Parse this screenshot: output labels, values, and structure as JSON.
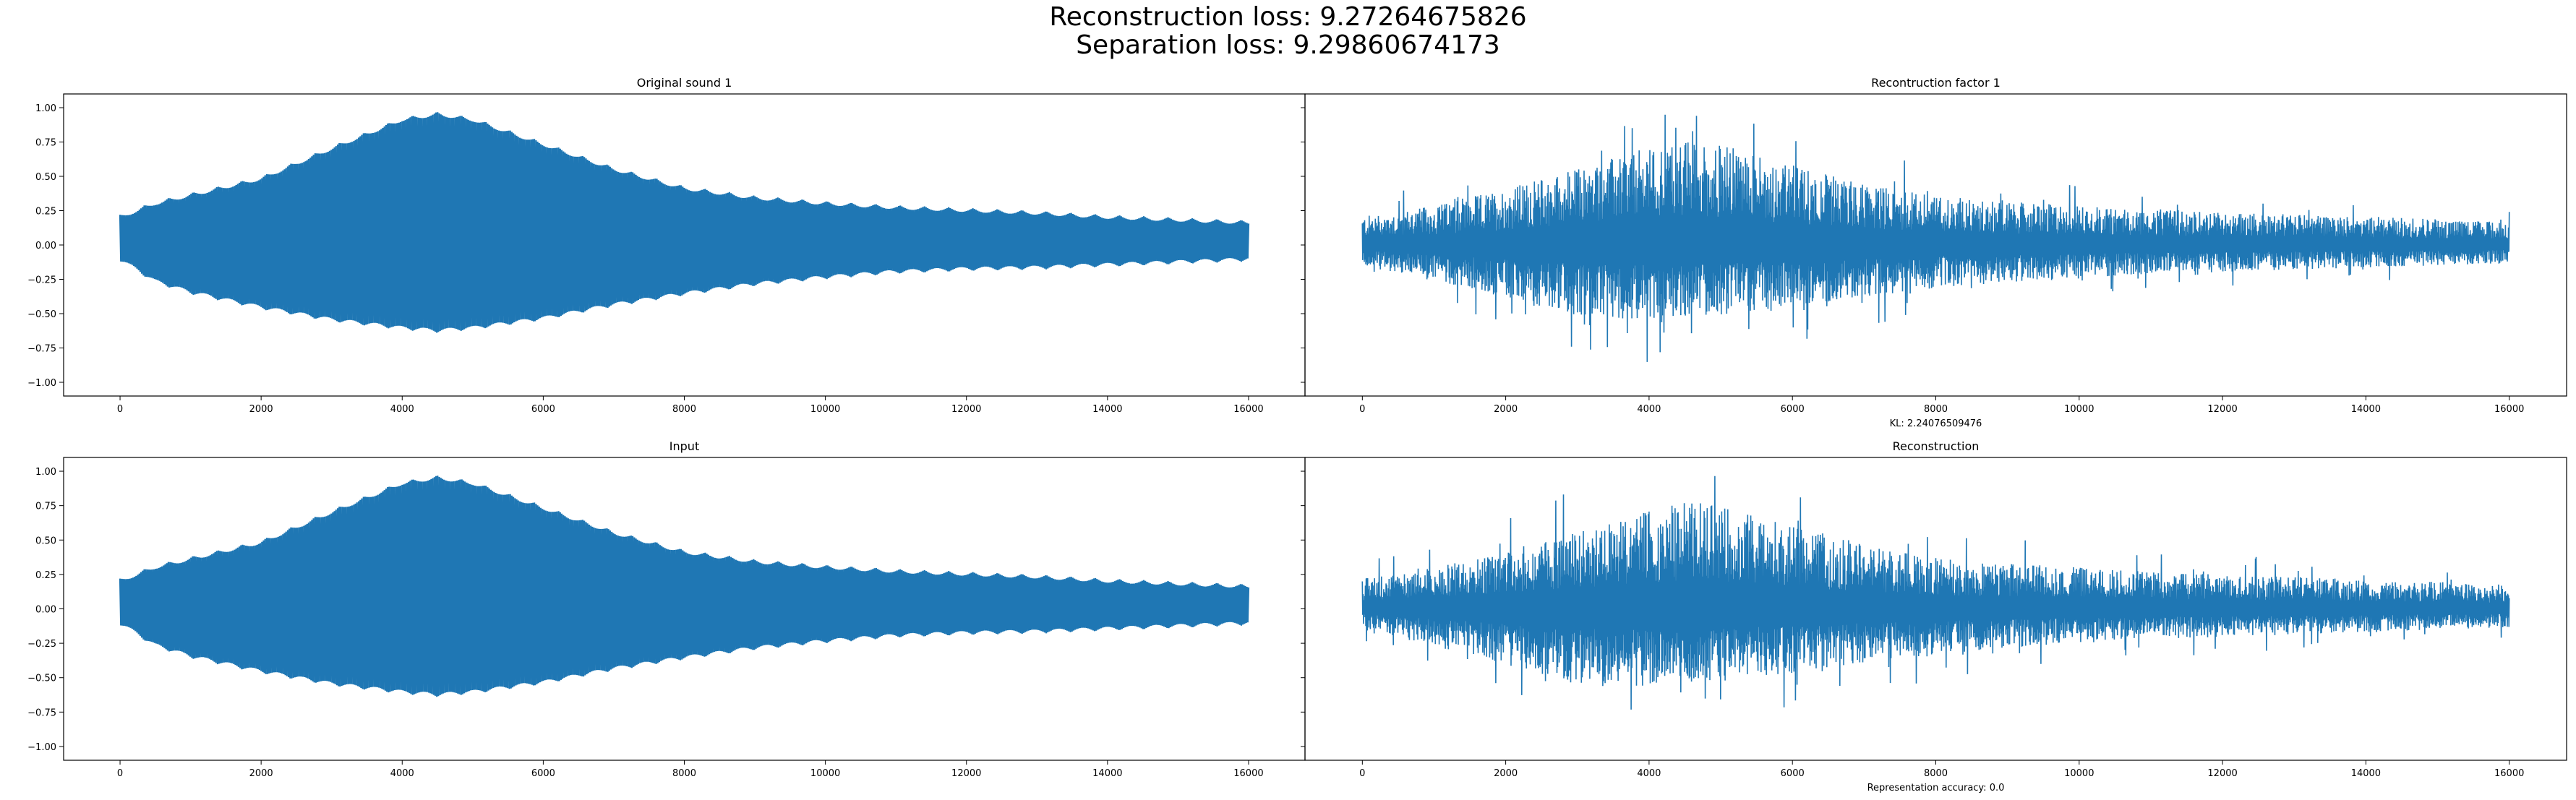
{
  "figure": {
    "suptitle_line1": "Reconstruction loss: 9.27264675826",
    "suptitle_line2": "Separation loss: 9.29860674173",
    "series_color": "#1f77b4"
  },
  "chart_data": [
    {
      "type": "line",
      "title": "Original sound 1",
      "xlabel": "",
      "ylabel": "",
      "xlim": [
        -800,
        16800
      ],
      "ylim": [
        -1.1,
        1.1
      ],
      "xticks": [
        0,
        2000,
        4000,
        6000,
        8000,
        10000,
        12000,
        14000,
        16000
      ],
      "yticks": [
        1.0,
        0.75,
        0.5,
        0.25,
        0.0,
        -0.25,
        -0.5,
        -0.75,
        -1.0
      ],
      "ytick_labels": [
        "1.00",
        "0.75",
        "0.50",
        "0.25",
        "0.00",
        "−0.25",
        "−0.50",
        "−0.75",
        "−1.00"
      ],
      "show_yticklabels": true,
      "grid": false,
      "signal": "tone",
      "envelope": {
        "x": [
          0,
          500,
          1000,
          2000,
          3000,
          4000,
          4500,
          5000,
          6000,
          7000,
          8000,
          9000,
          10000,
          11000,
          12000,
          13000,
          14000,
          15000,
          16000
        ],
        "upper": [
          0.22,
          0.32,
          0.38,
          0.5,
          0.72,
          0.93,
          0.97,
          0.93,
          0.75,
          0.57,
          0.43,
          0.36,
          0.32,
          0.29,
          0.27,
          0.25,
          0.22,
          0.2,
          0.18
        ],
        "lower": [
          -0.12,
          -0.28,
          -0.36,
          -0.47,
          -0.56,
          -0.62,
          -0.64,
          -0.62,
          -0.55,
          -0.45,
          -0.37,
          -0.3,
          -0.25,
          -0.21,
          -0.19,
          -0.18,
          -0.16,
          -0.14,
          -0.12
        ]
      }
    },
    {
      "type": "line",
      "title": "Recontruction factor 1",
      "xlabel": "KL: 2.24076509476",
      "ylabel": "",
      "xlim": [
        -800,
        16800
      ],
      "ylim": [
        -1.1,
        1.1
      ],
      "xticks": [
        0,
        2000,
        4000,
        6000,
        8000,
        10000,
        12000,
        14000,
        16000
      ],
      "show_yticklabels": false,
      "grid": false,
      "signal": "noise",
      "envelope": {
        "x": [
          0,
          1000,
          2000,
          3000,
          4000,
          4500,
          5000,
          6000,
          7000,
          8000,
          9000,
          10000,
          11000,
          12000,
          13000,
          14000,
          15000,
          16000
        ],
        "upper": [
          0.28,
          0.38,
          0.55,
          0.75,
          0.95,
          1.02,
          0.98,
          0.78,
          0.6,
          0.48,
          0.42,
          0.38,
          0.35,
          0.32,
          0.3,
          0.28,
          0.25,
          0.22
        ],
        "lower": [
          -0.2,
          -0.35,
          -0.52,
          -0.7,
          -0.72,
          -0.7,
          -0.68,
          -0.6,
          -0.5,
          -0.42,
          -0.36,
          -0.32,
          -0.28,
          -0.26,
          -0.24,
          -0.22,
          -0.2,
          -0.18
        ]
      }
    },
    {
      "type": "line",
      "title": "Input",
      "xlabel": "",
      "ylabel": "",
      "xlim": [
        -800,
        16800
      ],
      "ylim": [
        -1.1,
        1.1
      ],
      "xticks": [
        0,
        2000,
        4000,
        6000,
        8000,
        10000,
        12000,
        14000,
        16000
      ],
      "yticks": [
        1.0,
        0.75,
        0.5,
        0.25,
        0.0,
        -0.25,
        -0.5,
        -0.75,
        -1.0
      ],
      "ytick_labels": [
        "1.00",
        "0.75",
        "0.50",
        "0.25",
        "0.00",
        "−0.25",
        "−0.50",
        "−0.75",
        "−1.00"
      ],
      "show_yticklabels": true,
      "grid": false,
      "signal": "tone",
      "envelope": {
        "x": [
          0,
          500,
          1000,
          2000,
          3000,
          4000,
          4500,
          5000,
          6000,
          7000,
          8000,
          9000,
          10000,
          11000,
          12000,
          13000,
          14000,
          15000,
          16000
        ],
        "upper": [
          0.22,
          0.32,
          0.38,
          0.5,
          0.72,
          0.93,
          0.97,
          0.93,
          0.75,
          0.57,
          0.43,
          0.36,
          0.32,
          0.29,
          0.27,
          0.25,
          0.22,
          0.2,
          0.18
        ],
        "lower": [
          -0.12,
          -0.28,
          -0.36,
          -0.47,
          -0.56,
          -0.62,
          -0.64,
          -0.62,
          -0.55,
          -0.45,
          -0.37,
          -0.3,
          -0.25,
          -0.21,
          -0.19,
          -0.18,
          -0.16,
          -0.14,
          -0.12
        ]
      }
    },
    {
      "type": "line",
      "title": "Reconstruction",
      "xlabel": "Representation accuracy: 0.0",
      "ylabel": "",
      "xlim": [
        -800,
        16800
      ],
      "ylim": [
        -1.1,
        1.1
      ],
      "xticks": [
        0,
        2000,
        4000,
        6000,
        8000,
        10000,
        12000,
        14000,
        16000
      ],
      "show_yticklabels": false,
      "grid": false,
      "signal": "noise",
      "envelope": {
        "x": [
          0,
          1000,
          2000,
          3000,
          4000,
          4500,
          5000,
          6000,
          7000,
          8000,
          9000,
          10000,
          11000,
          12000,
          13000,
          14000,
          15000,
          16000
        ],
        "upper": [
          0.3,
          0.4,
          0.56,
          0.75,
          0.95,
          1.04,
          1.0,
          0.8,
          0.62,
          0.5,
          0.44,
          0.4,
          0.36,
          0.33,
          0.31,
          0.29,
          0.26,
          0.22
        ],
        "lower": [
          -0.2,
          -0.36,
          -0.55,
          -0.72,
          -0.75,
          -0.72,
          -0.7,
          -0.62,
          -0.52,
          -0.44,
          -0.38,
          -0.33,
          -0.3,
          -0.27,
          -0.25,
          -0.23,
          -0.2,
          -0.18
        ]
      }
    }
  ]
}
